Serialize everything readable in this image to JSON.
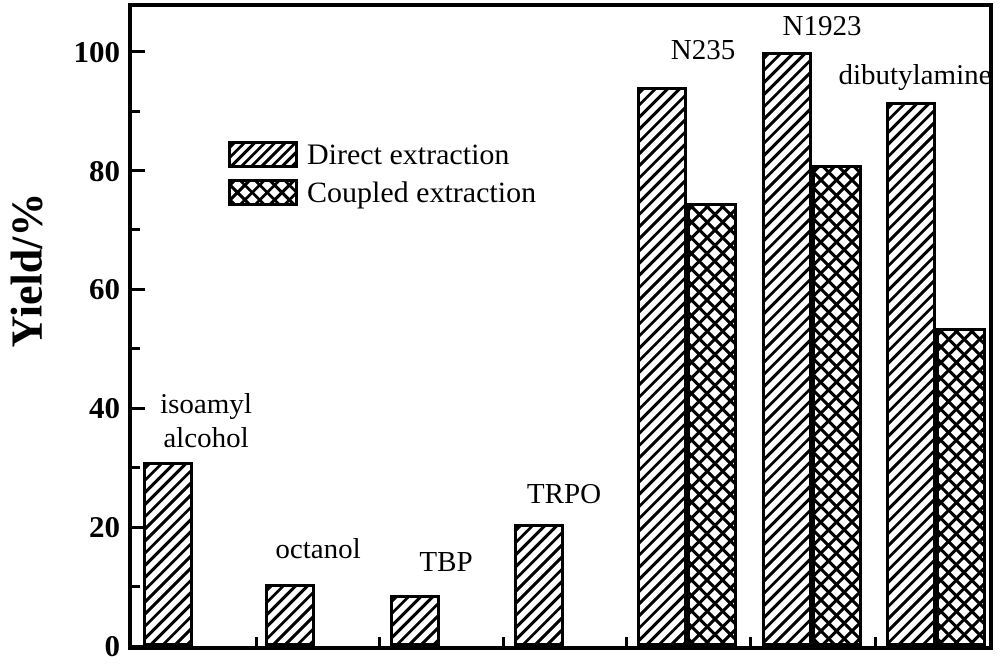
{
  "figure": {
    "background_color": "#ffffff",
    "ink_color": "#000000"
  },
  "chart_data": {
    "type": "bar",
    "title": "",
    "xlabel": "",
    "ylabel": "Yield/%",
    "ylim": [
      0,
      108
    ],
    "yticks_major": [
      100,
      80,
      60,
      40,
      20,
      0
    ],
    "ytick_labels": [
      "100",
      "80",
      "60",
      "40",
      "20",
      "0"
    ],
    "yticks_minor": [
      90,
      70,
      50,
      30,
      10
    ],
    "grid": false,
    "categories": [
      "isoamyl alcohol",
      "octanol",
      "TBP",
      "TRPO",
      "N235",
      "N1923",
      "dibutylamine"
    ],
    "category_annotations": [
      "isoamyl\nalcohol",
      "octanol",
      "TBP",
      "TRPO",
      "N235",
      "N1923",
      "dibutylamine"
    ],
    "series": [
      {
        "name": "Direct extraction",
        "pattern": "diagonal-hatch",
        "values": [
          31,
          10.5,
          8.5,
          20.5,
          94,
          100,
          91.5
        ]
      },
      {
        "name": "Coupled extraction",
        "pattern": "cross-hatch",
        "values": [
          null,
          null,
          null,
          null,
          74.5,
          81,
          53.5
        ]
      }
    ],
    "legend": {
      "position": "upper-left-inside",
      "entries": [
        "Direct extraction",
        "Coupled extraction"
      ]
    }
  }
}
